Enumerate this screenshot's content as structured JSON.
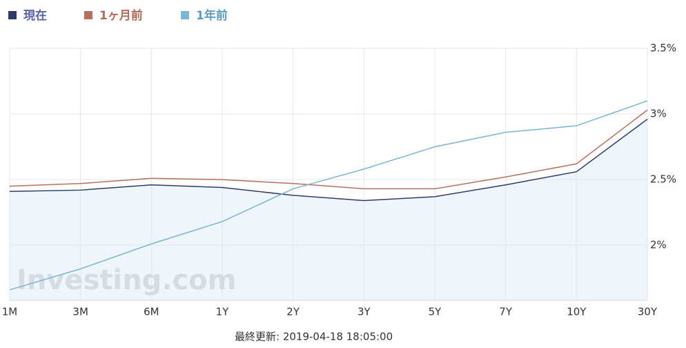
{
  "chart_data": {
    "type": "line",
    "legend": "top-left",
    "grid": true,
    "area_under_first_series": true,
    "categories": [
      "1M",
      "3M",
      "6M",
      "1Y",
      "2Y",
      "3Y",
      "5Y",
      "7Y",
      "10Y",
      "30Y"
    ],
    "series": [
      {
        "name": "現在",
        "color": "#2f3b66",
        "values": [
          2.41,
          2.42,
          2.46,
          2.44,
          2.38,
          2.34,
          2.37,
          2.46,
          2.56,
          2.96
        ]
      },
      {
        "name": "1ヶ月前",
        "color": "#b86f5f",
        "values": [
          2.45,
          2.47,
          2.51,
          2.5,
          2.47,
          2.43,
          2.43,
          2.52,
          2.62,
          3.03
        ]
      },
      {
        "name": "1年前",
        "color": "#7ab5d2",
        "values": [
          1.66,
          1.82,
          2.01,
          2.18,
          2.43,
          2.58,
          2.75,
          2.86,
          2.91,
          3.1
        ]
      }
    ],
    "ylim": [
      1.58,
      3.5
    ],
    "yticks": [
      {
        "value": 2,
        "label": "2%"
      },
      {
        "value": 2.5,
        "label": "2.5%"
      },
      {
        "value": 3,
        "label": "3%"
      },
      {
        "value": 3.5,
        "label": "3.5%"
      }
    ],
    "watermark": "Investing.com",
    "footer": "最終更新: 2019-04-18 18:05:00"
  }
}
